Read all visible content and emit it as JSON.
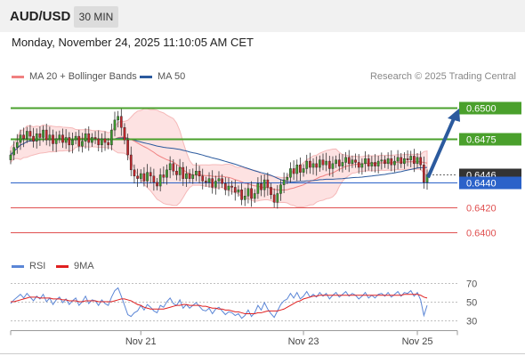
{
  "header": {
    "symbol": "AUD/USD",
    "timeframe": "30 MIN",
    "datetime": "Monday, November 24, 2025 11:10:05 AM CET"
  },
  "legend": {
    "bollinger_label": "MA 20 + Bollinger Bands",
    "ma50_label": "MA 50",
    "credit": "Research © 2025 Trading Central",
    "colors": {
      "bollinger": "#f08080",
      "ma50": "#2b5a9e"
    }
  },
  "rsi_legend": {
    "rsi_label": "RSI",
    "ma9_label": "9MA",
    "colors": {
      "rsi": "#5b86d6",
      "ma9": "#e02020"
    }
  },
  "chart_data": [
    {
      "type": "candlestick",
      "x_ticks": [
        "Nov 21",
        "Nov 23",
        "Nov 25"
      ],
      "levels": [
        {
          "value": 0.65,
          "label": "0.6500",
          "color": "#4aa02c",
          "kind": "target"
        },
        {
          "value": 0.6475,
          "label": "0.6475",
          "color": "#4aa02c",
          "kind": "target"
        },
        {
          "value": 0.6446,
          "label": "0.6446",
          "color": "#333333",
          "kind": "last"
        },
        {
          "value": 0.644,
          "label": "0.6440",
          "color": "#2b62c9",
          "kind": "pivot"
        },
        {
          "value": 0.642,
          "label": "0.6420",
          "color": "#e05050",
          "kind": "support"
        },
        {
          "value": 0.64,
          "label": "0.6400",
          "color": "#e05050",
          "kind": "support"
        }
      ],
      "ylim": [
        0.6392,
        0.6511
      ],
      "closes": [
        0.6462,
        0.6468,
        0.6472,
        0.6478,
        0.6475,
        0.6481,
        0.6477,
        0.6473,
        0.6479,
        0.6476,
        0.6482,
        0.6474,
        0.6478,
        0.6471,
        0.6475,
        0.6478,
        0.6472,
        0.6476,
        0.647,
        0.6474,
        0.6477,
        0.6469,
        0.6473,
        0.6479,
        0.6472,
        0.6476,
        0.6475,
        0.647,
        0.6475,
        0.6472,
        0.647,
        0.6482,
        0.649,
        0.6493,
        0.6484,
        0.6474,
        0.6462,
        0.645,
        0.6445,
        0.6443,
        0.6447,
        0.6441,
        0.6448,
        0.6445,
        0.644,
        0.6437,
        0.6446,
        0.6444,
        0.645,
        0.6455,
        0.6449,
        0.6446,
        0.6452,
        0.6443,
        0.6447,
        0.6443,
        0.6446,
        0.6449,
        0.6445,
        0.6441,
        0.644,
        0.6443,
        0.6436,
        0.6441,
        0.6443,
        0.6439,
        0.6434,
        0.6437,
        0.6436,
        0.6432,
        0.6434,
        0.6426,
        0.6429,
        0.6435,
        0.6427,
        0.6431,
        0.6439,
        0.6434,
        0.6442,
        0.6436,
        0.643,
        0.6424,
        0.6431,
        0.6438,
        0.6442,
        0.6444,
        0.6451,
        0.6447,
        0.6454,
        0.6448,
        0.6451,
        0.6457,
        0.6452,
        0.6455,
        0.6452,
        0.6458,
        0.6454,
        0.6457,
        0.6451,
        0.6455,
        0.6458,
        0.6453,
        0.6456,
        0.646,
        0.6455,
        0.6458,
        0.6456,
        0.6452,
        0.6455,
        0.6459,
        0.6453,
        0.6456,
        0.6453,
        0.6457,
        0.6458,
        0.6455,
        0.6459,
        0.6454,
        0.6457,
        0.646,
        0.6455,
        0.6459,
        0.6458,
        0.6461,
        0.6455,
        0.646,
        0.6454,
        0.644,
        0.6446
      ],
      "forecast_arrow": {
        "from": 0.6446,
        "to": 0.65
      }
    },
    {
      "type": "line",
      "title": "RSI",
      "y_ticks": [
        70,
        50,
        30
      ],
      "ylim": [
        22,
        78
      ],
      "series": [
        {
          "name": "RSI",
          "values": [
            48,
            52,
            55,
            58,
            54,
            59,
            55,
            51,
            56,
            53,
            58,
            50,
            54,
            47,
            52,
            55,
            49,
            53,
            47,
            51,
            54,
            46,
            50,
            56,
            48,
            52,
            51,
            46,
            52,
            48,
            46,
            55,
            62,
            65,
            56,
            46,
            36,
            34,
            38,
            40,
            46,
            41,
            47,
            44,
            40,
            38,
            46,
            44,
            50,
            54,
            48,
            46,
            52,
            43,
            47,
            43,
            46,
            49,
            45,
            41,
            40,
            43,
            37,
            42,
            44,
            40,
            36,
            39,
            38,
            35,
            37,
            32,
            35,
            41,
            34,
            38,
            46,
            41,
            49,
            42,
            37,
            33,
            40,
            47,
            51,
            53,
            59,
            54,
            60,
            53,
            56,
            61,
            55,
            58,
            55,
            60,
            56,
            59,
            53,
            57,
            60,
            55,
            58,
            61,
            56,
            59,
            57,
            53,
            56,
            60,
            54,
            57,
            54,
            58,
            59,
            56,
            60,
            55,
            58,
            61,
            56,
            60,
            59,
            62,
            56,
            60,
            52,
            35,
            46
          ]
        },
        {
          "name": "9MA",
          "values": [
            50,
            50,
            51,
            52,
            53,
            54,
            55,
            55,
            55,
            54,
            54,
            54,
            54,
            53,
            53,
            53,
            52,
            52,
            51,
            51,
            51,
            50,
            50,
            51,
            51,
            51,
            51,
            50,
            50,
            50,
            50,
            50,
            51,
            52,
            53,
            53,
            52,
            51,
            49,
            47,
            46,
            44,
            43,
            42,
            42,
            42,
            42,
            42,
            43,
            44,
            45,
            46,
            46,
            47,
            47,
            46,
            46,
            46,
            46,
            45,
            45,
            44,
            43,
            43,
            42,
            42,
            41,
            41,
            40,
            39,
            39,
            38,
            37,
            37,
            37,
            37,
            38,
            38,
            39,
            40,
            40,
            40,
            40,
            41,
            42,
            44,
            46,
            48,
            50,
            51,
            53,
            54,
            55,
            56,
            56,
            57,
            57,
            57,
            57,
            57,
            57,
            57,
            57,
            57,
            57,
            57,
            57,
            57,
            57,
            57,
            57,
            57,
            57,
            57,
            57,
            57,
            57,
            57,
            57,
            57,
            57,
            58,
            58,
            58,
            58,
            58,
            57,
            55,
            54
          ]
        }
      ]
    }
  ]
}
